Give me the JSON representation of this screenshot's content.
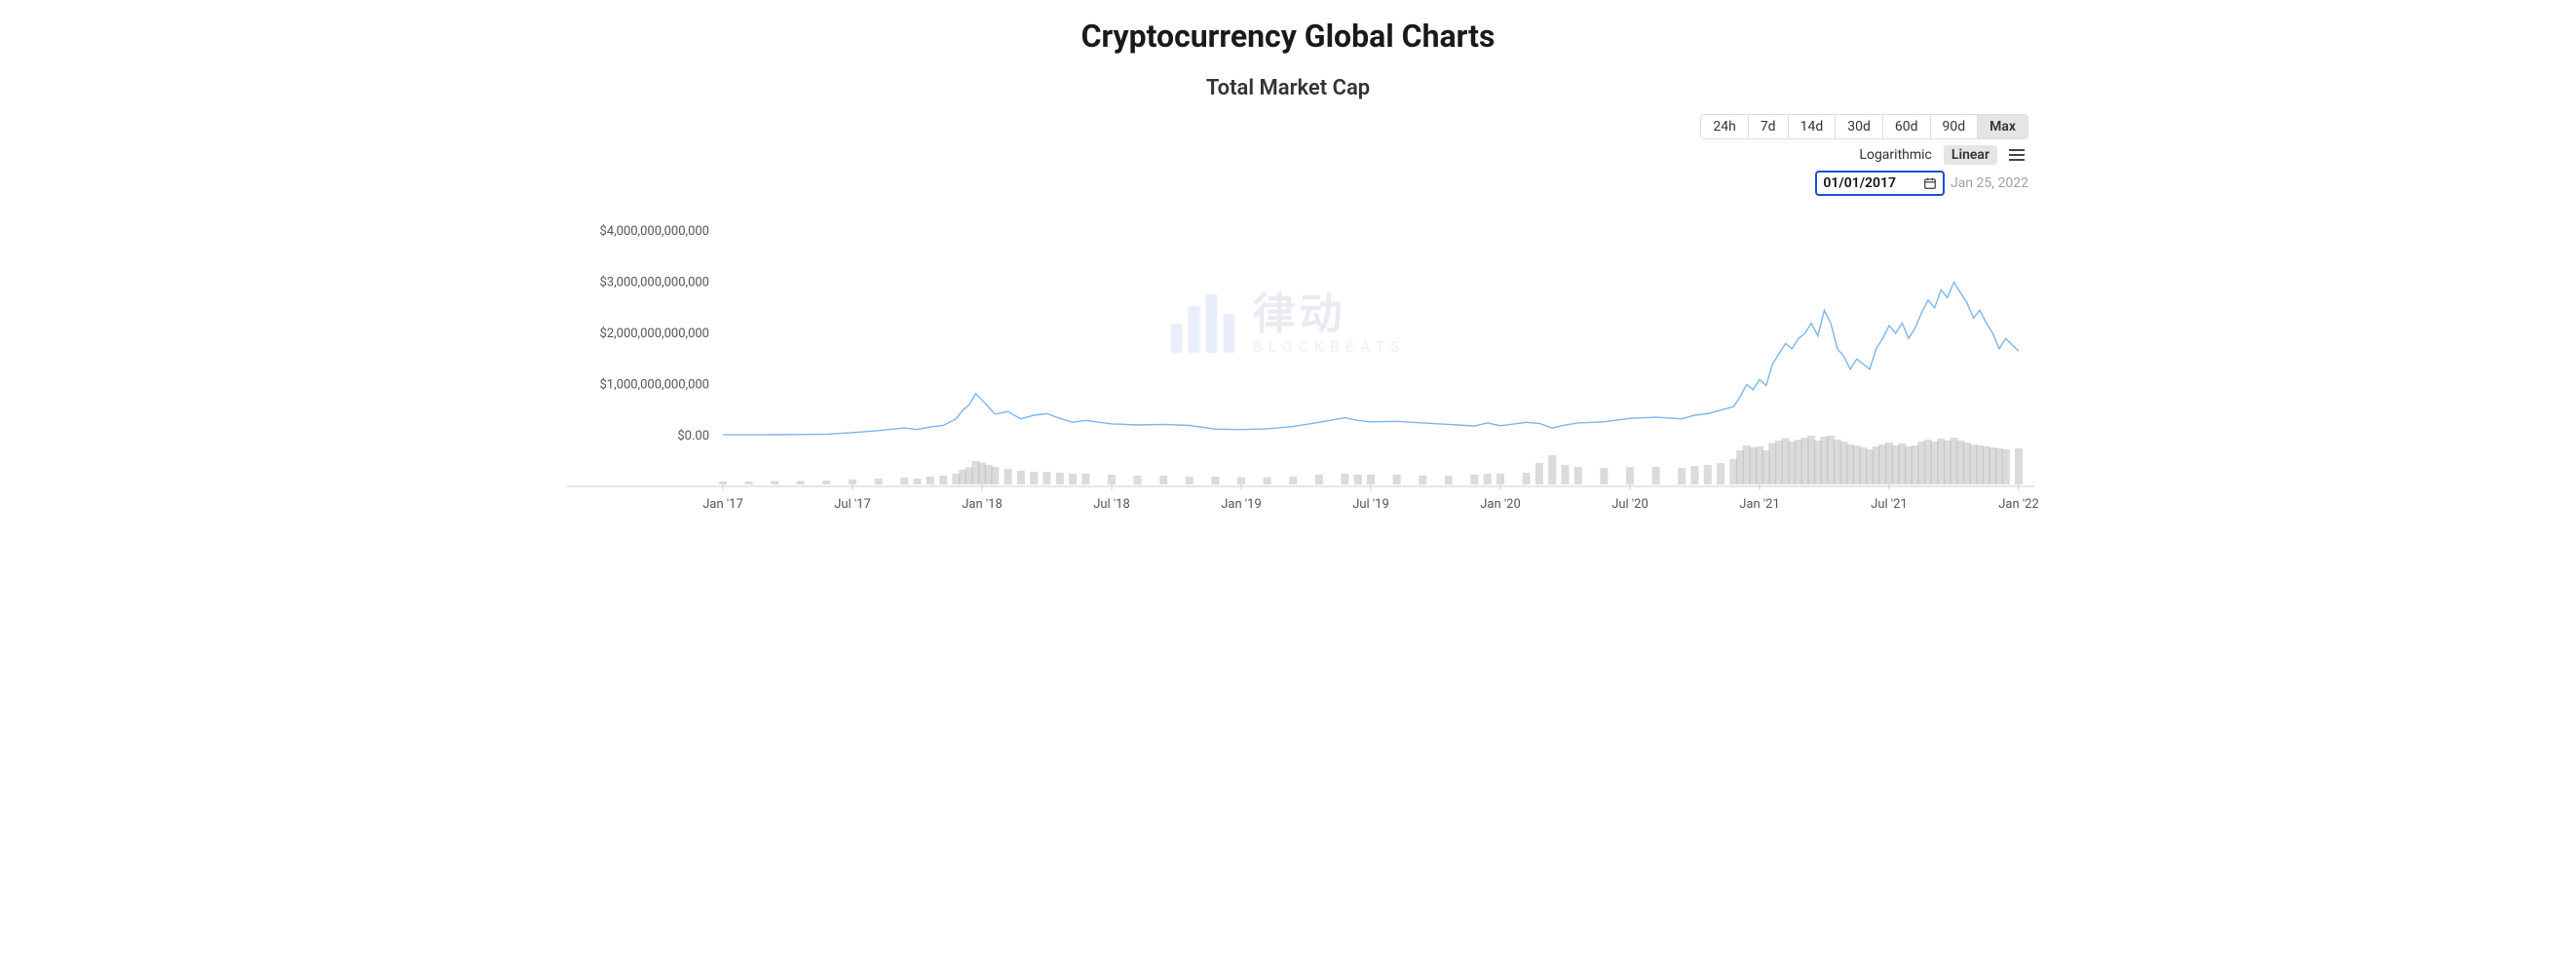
{
  "page_title": "Cryptocurrency Global Charts",
  "chart": {
    "type": "line",
    "subtitle": "Total Market Cap",
    "line_color": "#7cb5ec",
    "volume_color": "#b8b8b8",
    "background_color": "#ffffff",
    "grid_color": "#f0f0f0",
    "axis_color": "#cccccc",
    "text_color": "#555555",
    "title_fontsize": 32,
    "subtitle_fontsize": 22,
    "axis_fontsize": 13,
    "y": {
      "min": 0,
      "max": 4000000000000,
      "ticks": [
        0,
        1000000000000,
        2000000000000,
        3000000000000,
        4000000000000
      ],
      "tick_labels": [
        "$0.00",
        "$1,000,000,000,000",
        "$2,000,000,000,000",
        "$3,000,000,000,000",
        "$4,000,000,000,000"
      ]
    },
    "x": {
      "start": "2017-01",
      "end": "2022-01",
      "ticks": [
        "Jan '17",
        "Jul '17",
        "Jan '18",
        "Jul '18",
        "Jan '19",
        "Jul '19",
        "Jan '20",
        "Jul '20",
        "Jan '21",
        "Jul '21",
        "Jan '22"
      ]
    },
    "series": [
      {
        "t": 0.0,
        "v": 17000000000,
        "vol": 6
      },
      {
        "t": 0.02,
        "v": 18000000000,
        "vol": 6
      },
      {
        "t": 0.04,
        "v": 19000000000,
        "vol": 7
      },
      {
        "t": 0.06,
        "v": 22000000000,
        "vol": 7
      },
      {
        "t": 0.08,
        "v": 30000000000,
        "vol": 8
      },
      {
        "t": 0.1,
        "v": 60000000000,
        "vol": 10
      },
      {
        "t": 0.12,
        "v": 100000000000,
        "vol": 12
      },
      {
        "t": 0.14,
        "v": 150000000000,
        "vol": 14
      },
      {
        "t": 0.15,
        "v": 120000000000,
        "vol": 12
      },
      {
        "t": 0.16,
        "v": 170000000000,
        "vol": 16
      },
      {
        "t": 0.17,
        "v": 200000000000,
        "vol": 18
      },
      {
        "t": 0.18,
        "v": 330000000000,
        "vol": 22
      },
      {
        "t": 0.185,
        "v": 500000000000,
        "vol": 30
      },
      {
        "t": 0.19,
        "v": 600000000000,
        "vol": 35
      },
      {
        "t": 0.195,
        "v": 820000000000,
        "vol": 48
      },
      {
        "t": 0.2,
        "v": 700000000000,
        "vol": 45
      },
      {
        "t": 0.205,
        "v": 560000000000,
        "vol": 40
      },
      {
        "t": 0.21,
        "v": 420000000000,
        "vol": 36
      },
      {
        "t": 0.22,
        "v": 470000000000,
        "vol": 32
      },
      {
        "t": 0.23,
        "v": 330000000000,
        "vol": 28
      },
      {
        "t": 0.24,
        "v": 400000000000,
        "vol": 26
      },
      {
        "t": 0.25,
        "v": 430000000000,
        "vol": 26
      },
      {
        "t": 0.26,
        "v": 340000000000,
        "vol": 24
      },
      {
        "t": 0.27,
        "v": 260000000000,
        "vol": 22
      },
      {
        "t": 0.28,
        "v": 300000000000,
        "vol": 22
      },
      {
        "t": 0.3,
        "v": 230000000000,
        "vol": 20
      },
      {
        "t": 0.32,
        "v": 210000000000,
        "vol": 18
      },
      {
        "t": 0.34,
        "v": 220000000000,
        "vol": 18
      },
      {
        "t": 0.36,
        "v": 200000000000,
        "vol": 16
      },
      {
        "t": 0.38,
        "v": 130000000000,
        "vol": 16
      },
      {
        "t": 0.4,
        "v": 120000000000,
        "vol": 15
      },
      {
        "t": 0.42,
        "v": 135000000000,
        "vol": 15
      },
      {
        "t": 0.44,
        "v": 180000000000,
        "vol": 16
      },
      {
        "t": 0.46,
        "v": 260000000000,
        "vol": 20
      },
      {
        "t": 0.48,
        "v": 350000000000,
        "vol": 22
      },
      {
        "t": 0.49,
        "v": 300000000000,
        "vol": 20
      },
      {
        "t": 0.5,
        "v": 270000000000,
        "vol": 20
      },
      {
        "t": 0.52,
        "v": 280000000000,
        "vol": 20
      },
      {
        "t": 0.54,
        "v": 250000000000,
        "vol": 18
      },
      {
        "t": 0.56,
        "v": 220000000000,
        "vol": 18
      },
      {
        "t": 0.58,
        "v": 190000000000,
        "vol": 20
      },
      {
        "t": 0.59,
        "v": 250000000000,
        "vol": 22
      },
      {
        "t": 0.6,
        "v": 195000000000,
        "vol": 22
      },
      {
        "t": 0.62,
        "v": 260000000000,
        "vol": 24
      },
      {
        "t": 0.63,
        "v": 240000000000,
        "vol": 44
      },
      {
        "t": 0.64,
        "v": 150000000000,
        "vol": 60
      },
      {
        "t": 0.65,
        "v": 210000000000,
        "vol": 40
      },
      {
        "t": 0.66,
        "v": 250000000000,
        "vol": 36
      },
      {
        "t": 0.68,
        "v": 270000000000,
        "vol": 34
      },
      {
        "t": 0.7,
        "v": 340000000000,
        "vol": 36
      },
      {
        "t": 0.72,
        "v": 360000000000,
        "vol": 36
      },
      {
        "t": 0.74,
        "v": 330000000000,
        "vol": 34
      },
      {
        "t": 0.75,
        "v": 400000000000,
        "vol": 38
      },
      {
        "t": 0.76,
        "v": 430000000000,
        "vol": 40
      },
      {
        "t": 0.77,
        "v": 500000000000,
        "vol": 44
      },
      {
        "t": 0.78,
        "v": 570000000000,
        "vol": 52
      },
      {
        "t": 0.785,
        "v": 760000000000,
        "vol": 70
      },
      {
        "t": 0.79,
        "v": 1000000000000,
        "vol": 80
      },
      {
        "t": 0.795,
        "v": 900000000000,
        "vol": 76
      },
      {
        "t": 0.8,
        "v": 1100000000000,
        "vol": 78
      },
      {
        "t": 0.805,
        "v": 980000000000,
        "vol": 70
      },
      {
        "t": 0.81,
        "v": 1400000000000,
        "vol": 85
      },
      {
        "t": 0.815,
        "v": 1600000000000,
        "vol": 90
      },
      {
        "t": 0.82,
        "v": 1800000000000,
        "vol": 95
      },
      {
        "t": 0.825,
        "v": 1700000000000,
        "vol": 88
      },
      {
        "t": 0.83,
        "v": 1900000000000,
        "vol": 92
      },
      {
        "t": 0.835,
        "v": 2000000000000,
        "vol": 96
      },
      {
        "t": 0.84,
        "v": 2200000000000,
        "vol": 100
      },
      {
        "t": 0.845,
        "v": 1950000000000,
        "vol": 90
      },
      {
        "t": 0.85,
        "v": 2450000000000,
        "vol": 98
      },
      {
        "t": 0.855,
        "v": 2200000000000,
        "vol": 100
      },
      {
        "t": 0.86,
        "v": 1700000000000,
        "vol": 92
      },
      {
        "t": 0.865,
        "v": 1550000000000,
        "vol": 88
      },
      {
        "t": 0.87,
        "v": 1300000000000,
        "vol": 82
      },
      {
        "t": 0.875,
        "v": 1500000000000,
        "vol": 80
      },
      {
        "t": 0.88,
        "v": 1400000000000,
        "vol": 76
      },
      {
        "t": 0.885,
        "v": 1300000000000,
        "vol": 72
      },
      {
        "t": 0.89,
        "v": 1700000000000,
        "vol": 78
      },
      {
        "t": 0.895,
        "v": 1900000000000,
        "vol": 82
      },
      {
        "t": 0.9,
        "v": 2150000000000,
        "vol": 86
      },
      {
        "t": 0.905,
        "v": 2000000000000,
        "vol": 80
      },
      {
        "t": 0.91,
        "v": 2200000000000,
        "vol": 84
      },
      {
        "t": 0.915,
        "v": 1900000000000,
        "vol": 78
      },
      {
        "t": 0.92,
        "v": 2100000000000,
        "vol": 80
      },
      {
        "t": 0.925,
        "v": 2400000000000,
        "vol": 88
      },
      {
        "t": 0.93,
        "v": 2650000000000,
        "vol": 92
      },
      {
        "t": 0.935,
        "v": 2500000000000,
        "vol": 88
      },
      {
        "t": 0.94,
        "v": 2850000000000,
        "vol": 94
      },
      {
        "t": 0.945,
        "v": 2700000000000,
        "vol": 90
      },
      {
        "t": 0.95,
        "v": 3000000000000,
        "vol": 96
      },
      {
        "t": 0.955,
        "v": 2800000000000,
        "vol": 90
      },
      {
        "t": 0.96,
        "v": 2600000000000,
        "vol": 86
      },
      {
        "t": 0.965,
        "v": 2300000000000,
        "vol": 82
      },
      {
        "t": 0.97,
        "v": 2450000000000,
        "vol": 80
      },
      {
        "t": 0.975,
        "v": 2200000000000,
        "vol": 78
      },
      {
        "t": 0.98,
        "v": 2000000000000,
        "vol": 76
      },
      {
        "t": 0.985,
        "v": 1700000000000,
        "vol": 74
      },
      {
        "t": 0.99,
        "v": 1900000000000,
        "vol": 72
      },
      {
        "t": 1.0,
        "v": 1650000000000,
        "vol": 74
      }
    ]
  },
  "controls": {
    "ranges": [
      {
        "label": "24h",
        "active": false
      },
      {
        "label": "7d",
        "active": false
      },
      {
        "label": "14d",
        "active": false
      },
      {
        "label": "30d",
        "active": false
      },
      {
        "label": "60d",
        "active": false
      },
      {
        "label": "90d",
        "active": false
      },
      {
        "label": "Max",
        "active": true
      }
    ],
    "scales": [
      {
        "label": "Logarithmic",
        "active": false
      },
      {
        "label": "Linear",
        "active": true
      }
    ],
    "start_date": "01/01/2017",
    "end_date": "Jan 25, 2022"
  },
  "watermark": {
    "cn": "律动",
    "en": "BLOCKBEATS",
    "bar_color": "#4a7fe0"
  }
}
